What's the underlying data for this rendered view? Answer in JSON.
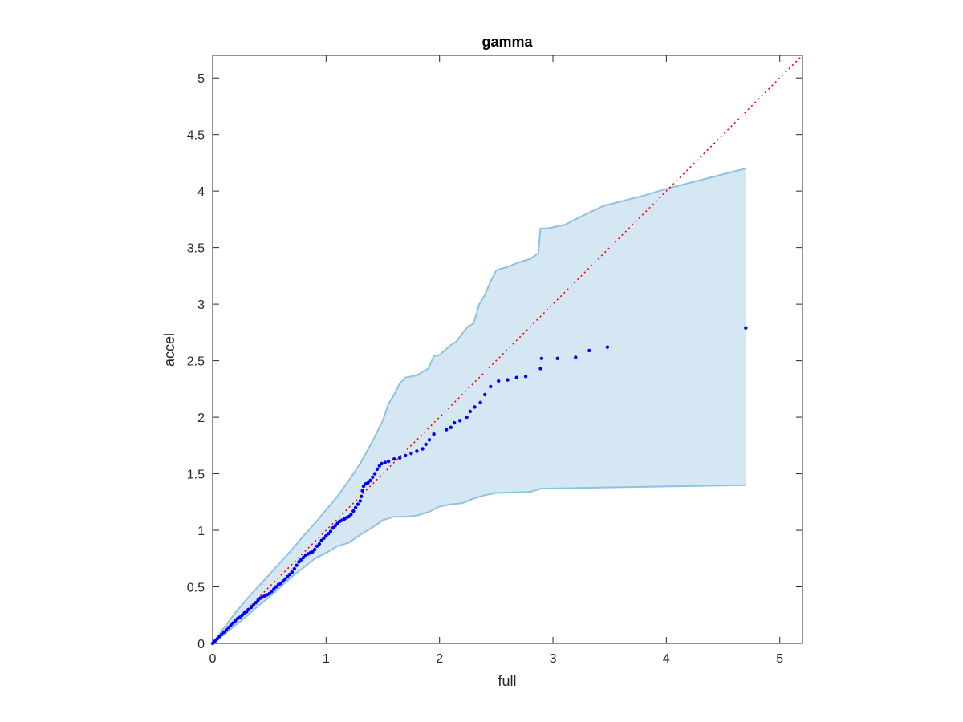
{
  "chart_data": {
    "type": "scatter",
    "title": "gamma",
    "xlabel": "full",
    "ylabel": "accel",
    "xlim": [
      0,
      5.2
    ],
    "ylim": [
      0,
      5.2
    ],
    "xticks": [
      "0",
      "1",
      "2",
      "3",
      "4",
      "5"
    ],
    "yticks": [
      "0",
      "0.5",
      "1",
      "1.5",
      "2",
      "2.5",
      "3",
      "3.5",
      "4",
      "4.5",
      "5"
    ],
    "grid": false,
    "colors": {
      "points": "#0000ff",
      "reference_line": "#ff0000",
      "band_fill": "#d6e7f4",
      "band_edge": "#8fc1e0",
      "axes": "#262626"
    },
    "reference_line": {
      "style": "dotted",
      "from": [
        0,
        0
      ],
      "to": [
        5.2,
        5.2
      ]
    },
    "confidence_band": {
      "upper": [
        [
          0,
          0
        ],
        [
          0.1,
          0.14
        ],
        [
          0.2,
          0.27
        ],
        [
          0.3,
          0.39
        ],
        [
          0.4,
          0.5
        ],
        [
          0.5,
          0.61
        ],
        [
          0.6,
          0.72
        ],
        [
          0.7,
          0.83
        ],
        [
          0.8,
          0.95
        ],
        [
          0.9,
          1.06
        ],
        [
          1.0,
          1.18
        ],
        [
          1.1,
          1.3
        ],
        [
          1.2,
          1.44
        ],
        [
          1.3,
          1.59
        ],
        [
          1.4,
          1.77
        ],
        [
          1.5,
          1.97
        ],
        [
          1.55,
          2.12
        ],
        [
          1.6,
          2.2
        ],
        [
          1.65,
          2.3
        ],
        [
          1.7,
          2.35
        ],
        [
          1.8,
          2.37
        ],
        [
          1.85,
          2.4
        ],
        [
          1.9,
          2.43
        ],
        [
          1.95,
          2.54
        ],
        [
          2.0,
          2.55
        ],
        [
          2.1,
          2.64
        ],
        [
          2.15,
          2.67
        ],
        [
          2.2,
          2.74
        ],
        [
          2.25,
          2.8
        ],
        [
          2.3,
          2.83
        ],
        [
          2.35,
          3.0
        ],
        [
          2.4,
          3.08
        ],
        [
          2.45,
          3.2
        ],
        [
          2.5,
          3.3
        ],
        [
          2.6,
          3.33
        ],
        [
          2.7,
          3.37
        ],
        [
          2.8,
          3.4
        ],
        [
          2.87,
          3.45
        ],
        [
          2.89,
          3.67
        ],
        [
          2.95,
          3.67
        ],
        [
          3.1,
          3.7
        ],
        [
          3.3,
          3.8
        ],
        [
          3.45,
          3.87
        ],
        [
          3.8,
          3.96
        ],
        [
          4.0,
          4.02
        ],
        [
          4.7,
          4.2
        ]
      ],
      "lower": [
        [
          0,
          0
        ],
        [
          0.1,
          0.08
        ],
        [
          0.2,
          0.16
        ],
        [
          0.3,
          0.24
        ],
        [
          0.4,
          0.33
        ],
        [
          0.5,
          0.41
        ],
        [
          0.6,
          0.5
        ],
        [
          0.7,
          0.59
        ],
        [
          0.8,
          0.67
        ],
        [
          0.9,
          0.75
        ],
        [
          1.0,
          0.8
        ],
        [
          1.1,
          0.86
        ],
        [
          1.2,
          0.89
        ],
        [
          1.3,
          0.96
        ],
        [
          1.4,
          1.02
        ],
        [
          1.5,
          1.09
        ],
        [
          1.6,
          1.12
        ],
        [
          1.7,
          1.12
        ],
        [
          1.8,
          1.13
        ],
        [
          1.9,
          1.16
        ],
        [
          2.0,
          1.21
        ],
        [
          2.1,
          1.23
        ],
        [
          2.2,
          1.24
        ],
        [
          2.3,
          1.28
        ],
        [
          2.4,
          1.31
        ],
        [
          2.5,
          1.33
        ],
        [
          2.8,
          1.34
        ],
        [
          2.9,
          1.37
        ],
        [
          3.0,
          1.37
        ],
        [
          3.5,
          1.38
        ],
        [
          4.7,
          1.4
        ]
      ]
    },
    "points": [
      [
        0,
        0
      ],
      [
        0.02,
        0.02
      ],
      [
        0.04,
        0.04
      ],
      [
        0.06,
        0.06
      ],
      [
        0.08,
        0.08
      ],
      [
        0.1,
        0.1
      ],
      [
        0.12,
        0.12
      ],
      [
        0.14,
        0.14
      ],
      [
        0.16,
        0.16
      ],
      [
        0.18,
        0.18
      ],
      [
        0.2,
        0.2
      ],
      [
        0.22,
        0.22
      ],
      [
        0.24,
        0.23
      ],
      [
        0.26,
        0.25
      ],
      [
        0.28,
        0.27
      ],
      [
        0.3,
        0.28
      ],
      [
        0.32,
        0.3
      ],
      [
        0.34,
        0.32
      ],
      [
        0.36,
        0.34
      ],
      [
        0.38,
        0.36
      ],
      [
        0.4,
        0.38
      ],
      [
        0.42,
        0.4
      ],
      [
        0.44,
        0.41
      ],
      [
        0.46,
        0.42
      ],
      [
        0.48,
        0.43
      ],
      [
        0.5,
        0.44
      ],
      [
        0.52,
        0.46
      ],
      [
        0.54,
        0.48
      ],
      [
        0.56,
        0.5
      ],
      [
        0.58,
        0.52
      ],
      [
        0.6,
        0.53
      ],
      [
        0.62,
        0.55
      ],
      [
        0.64,
        0.57
      ],
      [
        0.66,
        0.59
      ],
      [
        0.68,
        0.61
      ],
      [
        0.7,
        0.63
      ],
      [
        0.72,
        0.66
      ],
      [
        0.74,
        0.69
      ],
      [
        0.76,
        0.72
      ],
      [
        0.78,
        0.74
      ],
      [
        0.8,
        0.76
      ],
      [
        0.82,
        0.78
      ],
      [
        0.84,
        0.79
      ],
      [
        0.86,
        0.8
      ],
      [
        0.88,
        0.81
      ],
      [
        0.9,
        0.83
      ],
      [
        0.92,
        0.86
      ],
      [
        0.94,
        0.88
      ],
      [
        0.96,
        0.91
      ],
      [
        0.98,
        0.93
      ],
      [
        1.0,
        0.95
      ],
      [
        1.02,
        0.97
      ],
      [
        1.04,
        0.99
      ],
      [
        1.06,
        1.02
      ],
      [
        1.08,
        1.04
      ],
      [
        1.1,
        1.06
      ],
      [
        1.12,
        1.08
      ],
      [
        1.14,
        1.09
      ],
      [
        1.16,
        1.1
      ],
      [
        1.18,
        1.11
      ],
      [
        1.2,
        1.12
      ],
      [
        1.22,
        1.14
      ],
      [
        1.24,
        1.17
      ],
      [
        1.26,
        1.2
      ],
      [
        1.28,
        1.23
      ],
      [
        1.3,
        1.26
      ],
      [
        1.31,
        1.3
      ],
      [
        1.32,
        1.35
      ],
      [
        1.33,
        1.39
      ],
      [
        1.35,
        1.41
      ],
      [
        1.37,
        1.42
      ],
      [
        1.39,
        1.44
      ],
      [
        1.41,
        1.47
      ],
      [
        1.43,
        1.5
      ],
      [
        1.45,
        1.54
      ],
      [
        1.47,
        1.57
      ],
      [
        1.49,
        1.59
      ],
      [
        1.52,
        1.6
      ],
      [
        1.55,
        1.61
      ],
      [
        1.6,
        1.63
      ],
      [
        1.65,
        1.64
      ],
      [
        1.7,
        1.66
      ],
      [
        1.75,
        1.68
      ],
      [
        1.8,
        1.7
      ],
      [
        1.85,
        1.72
      ],
      [
        1.88,
        1.76
      ],
      [
        1.91,
        1.8
      ],
      [
        1.95,
        1.85
      ],
      [
        2.06,
        1.89
      ],
      [
        2.1,
        1.91
      ],
      [
        2.13,
        1.95
      ],
      [
        2.18,
        1.97
      ],
      [
        2.24,
        2.0
      ],
      [
        2.27,
        2.05
      ],
      [
        2.31,
        2.09
      ],
      [
        2.36,
        2.13
      ],
      [
        2.4,
        2.2
      ],
      [
        2.45,
        2.27
      ],
      [
        2.52,
        2.32
      ],
      [
        2.6,
        2.33
      ],
      [
        2.68,
        2.35
      ],
      [
        2.76,
        2.36
      ],
      [
        2.89,
        2.43
      ],
      [
        2.9,
        2.52
      ],
      [
        3.04,
        2.52
      ],
      [
        3.2,
        2.53
      ],
      [
        3.32,
        2.59
      ],
      [
        3.48,
        2.62
      ],
      [
        4.7,
        2.79
      ]
    ]
  }
}
